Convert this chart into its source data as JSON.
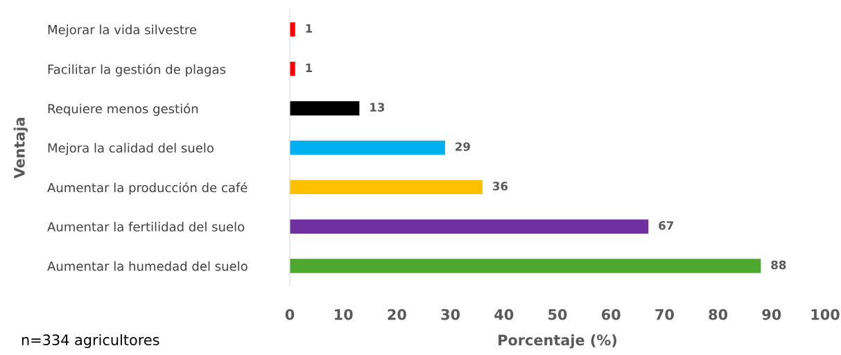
{
  "chart_data": {
    "type": "bar",
    "orientation": "horizontal",
    "xlabel": "Porcentaje (%)",
    "ylabel": "Ventaja",
    "categories": [
      "Mejorar la vida silvestre",
      "Facilitar la gestión de plagas",
      "Requiere menos gestión",
      "Mejora la calidad del suelo",
      "Aumentar la producción de café",
      "Aumentar la fertilidad del suelo",
      "Aumentar la humedad del suelo"
    ],
    "values": [
      1,
      1,
      13,
      29,
      36,
      67,
      88
    ],
    "colors": [
      "#ff0000",
      "#ff0000",
      "#000000",
      "#00b0f0",
      "#ffc000",
      "#7030a0",
      "#4ea72e"
    ],
    "xlim": [
      0,
      100
    ],
    "xticks": [
      0,
      10,
      20,
      30,
      40,
      50,
      60,
      70,
      80,
      90,
      100
    ],
    "data_labels": true,
    "grid": false,
    "legend": false,
    "annotations": [
      "n=334 agricultores"
    ]
  }
}
